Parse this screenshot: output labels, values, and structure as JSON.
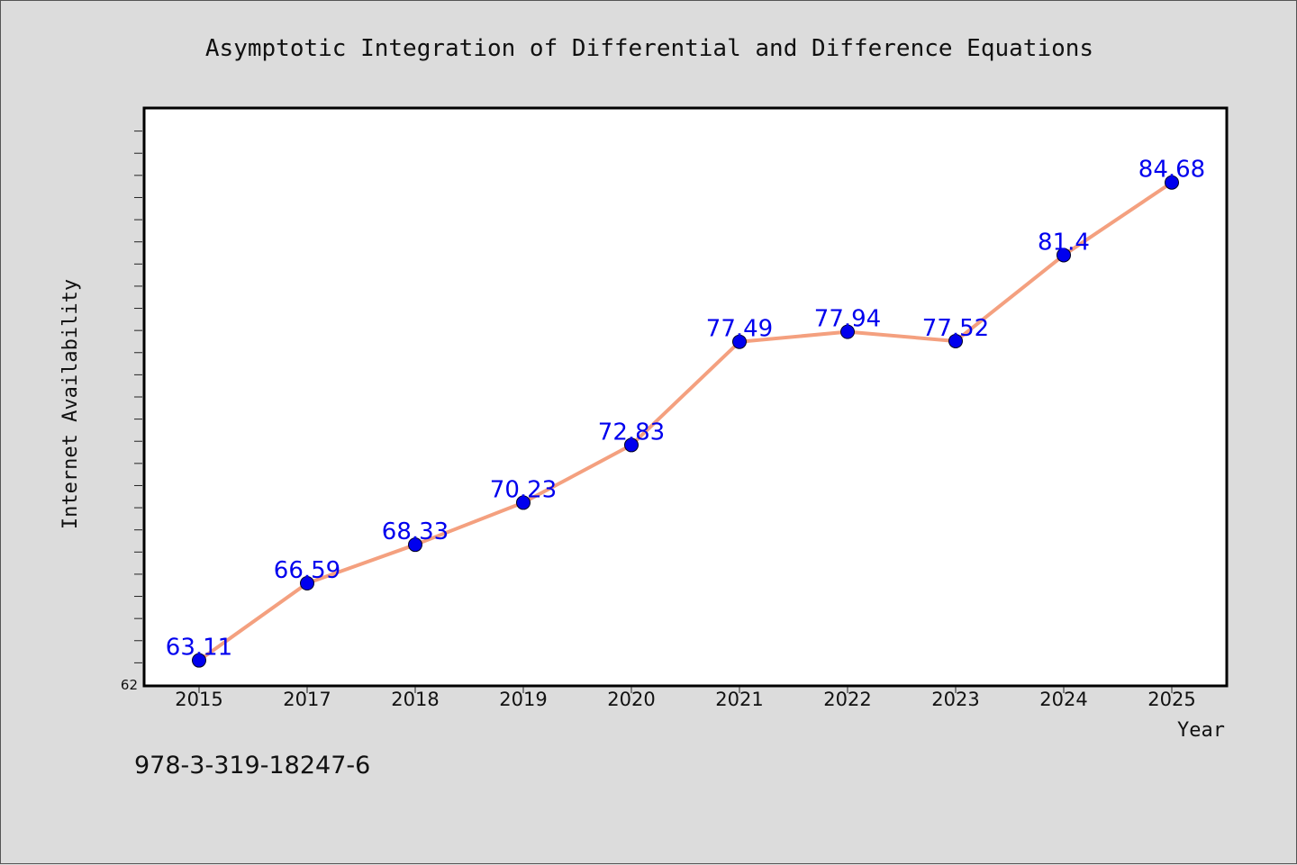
{
  "chart_data": {
    "type": "line",
    "title": "Asymptotic Integration of Differential and Difference Equations",
    "xlabel": "Year",
    "ylabel": "Internet Availability",
    "categories": [
      "2015",
      "2017",
      "2018",
      "2019",
      "2020",
      "2021",
      "2022",
      "2023",
      "2024",
      "2025"
    ],
    "series": [
      {
        "values": [
          63.11,
          66.59,
          68.33,
          70.23,
          72.83,
          77.49,
          77.94,
          77.52,
          81.4,
          84.68
        ],
        "labels": [
          "63.11",
          "66.59",
          "68.33",
          "70.23",
          "72.83",
          "77.49",
          "77.94",
          "77.52",
          "81.4",
          "84.68"
        ]
      }
    ],
    "ylim": [
      62,
      88
    ],
    "y_tick_labels": [
      "62"
    ],
    "grid": false,
    "line_color": "#f4a07f",
    "marker_color": "#0000ee",
    "label_color": "#0000ee"
  },
  "footer": {
    "isbn": "978-3-319-18247-6"
  }
}
